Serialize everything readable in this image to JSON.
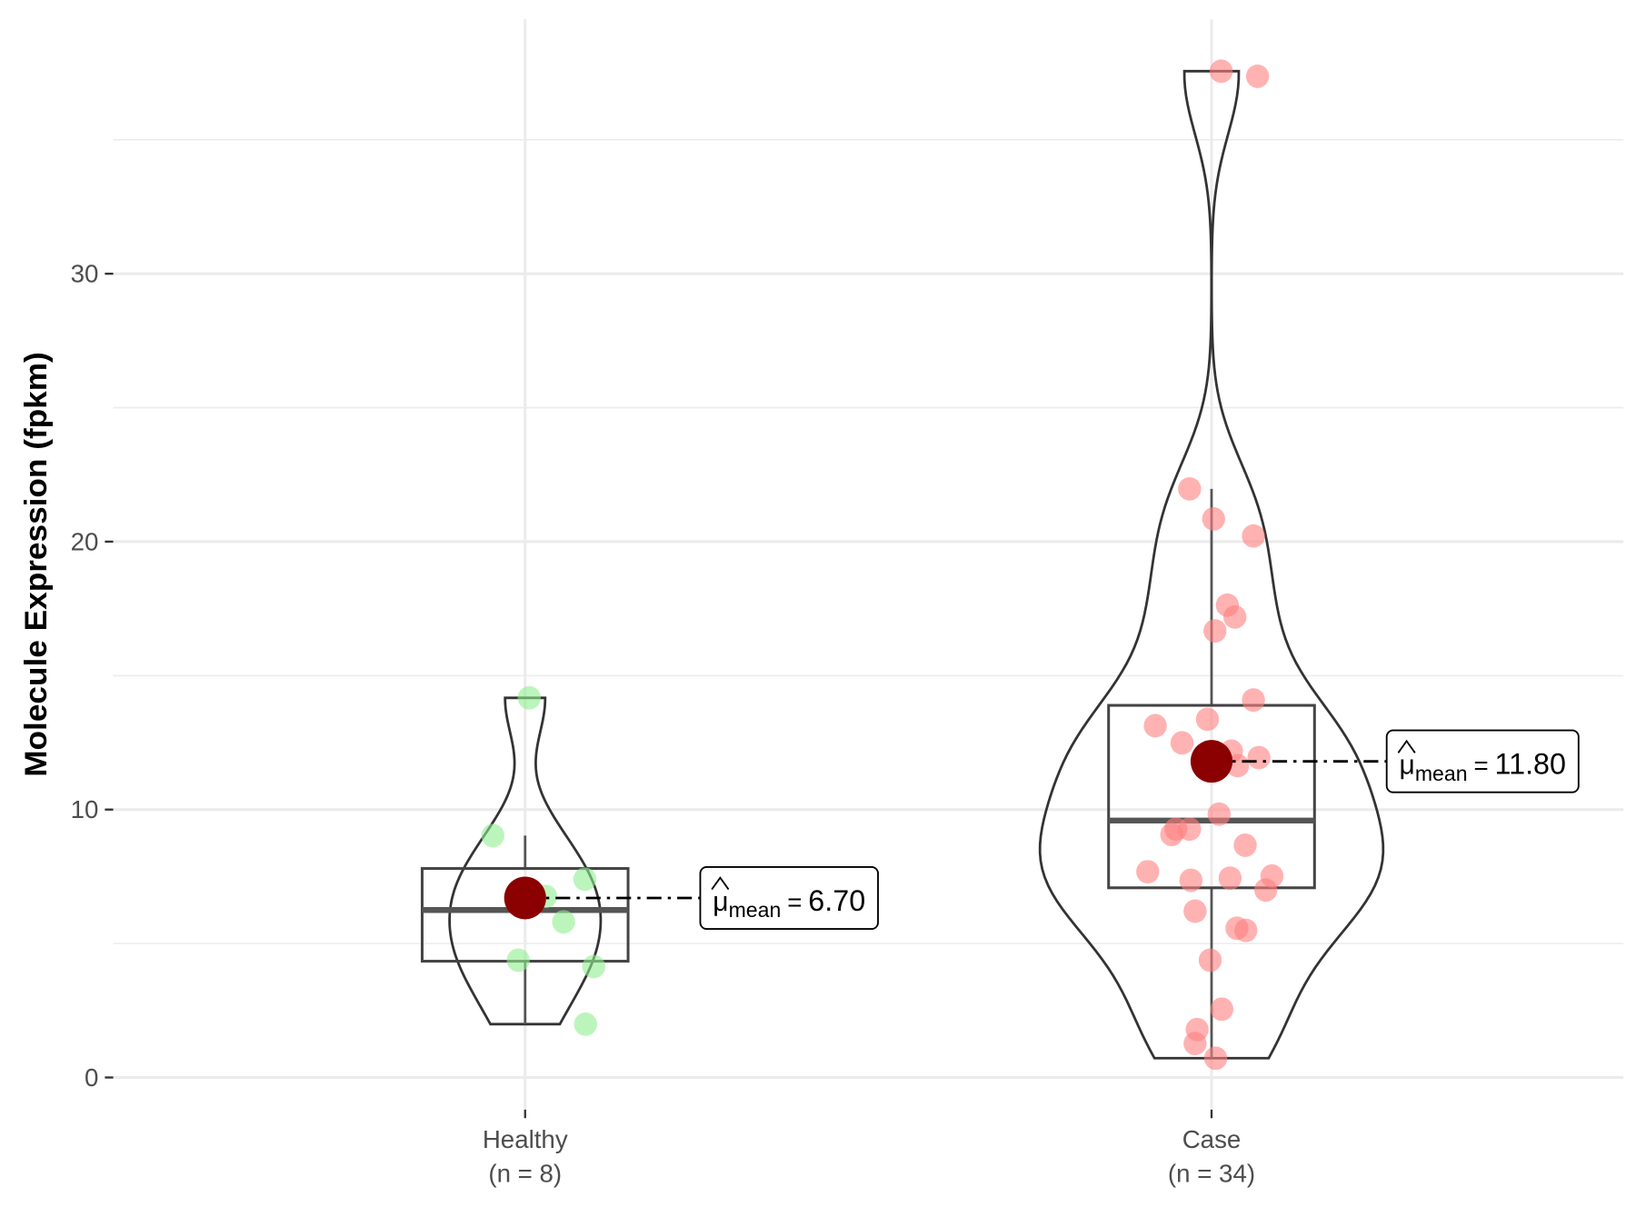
{
  "chart_data": {
    "type": "violin",
    "y_label": "Molecule Expression (fpkm)",
    "ylim": [
      -1.2,
      39.5
    ],
    "yticks": [
      0,
      10,
      20,
      30
    ],
    "y_minor_ticks": [
      5,
      15,
      25,
      35
    ],
    "grid": true,
    "mean_color": "#8b0000",
    "mean_symbol": "μ",
    "mean_subscript": "mean",
    "mean_equals": "=",
    "groups": [
      {
        "name": "Healthy",
        "sublabel": "(n = 8)",
        "color": "#90ee90",
        "values": [
          14.17,
          9.03,
          6.76,
          7.4,
          5.81,
          4.38,
          4.14,
          1.99
        ],
        "jitter": [
          0.006,
          -0.047,
          0.03,
          0.087,
          0.056,
          -0.01,
          0.1,
          0.088
        ],
        "box": {
          "whisker_low": 1.99,
          "q1": 4.34,
          "median": 6.25,
          "q3": 7.8,
          "whisker_high": 9.03
        },
        "mean": 6.7,
        "mean_label": "6.70"
      },
      {
        "name": "Case",
        "sublabel": "(n = 34)",
        "color": "#ff7f7f",
        "values": [
          37.56,
          37.37,
          21.97,
          20.85,
          20.21,
          17.63,
          17.19,
          16.67,
          14.09,
          13.13,
          13.37,
          12.49,
          12.18,
          11.94,
          11.82,
          9.83,
          9.27,
          9.27,
          9.07,
          8.67,
          7.68,
          7.36,
          7.44,
          7.52,
          7.0,
          6.21,
          5.57,
          5.49,
          4.38,
          2.55,
          1.79,
          1.27,
          0.72,
          11.64
        ],
        "jitter": [
          0.014,
          0.067,
          -0.032,
          0.003,
          0.061,
          0.023,
          0.034,
          0.005,
          0.061,
          -0.082,
          -0.006,
          -0.043,
          0.029,
          0.069,
          0.0,
          0.011,
          -0.052,
          -0.032,
          -0.058,
          0.049,
          -0.093,
          -0.03,
          0.027,
          0.088,
          0.079,
          -0.024,
          0.037,
          0.05,
          -0.002,
          0.015,
          -0.021,
          -0.024,
          0.006,
          0.038
        ],
        "box": {
          "whisker_low": 0.72,
          "q1": 7.08,
          "median": 9.59,
          "q3": 13.89,
          "whisker_high": 21.97
        },
        "mean": 11.8,
        "mean_label": "11.80"
      }
    ]
  }
}
